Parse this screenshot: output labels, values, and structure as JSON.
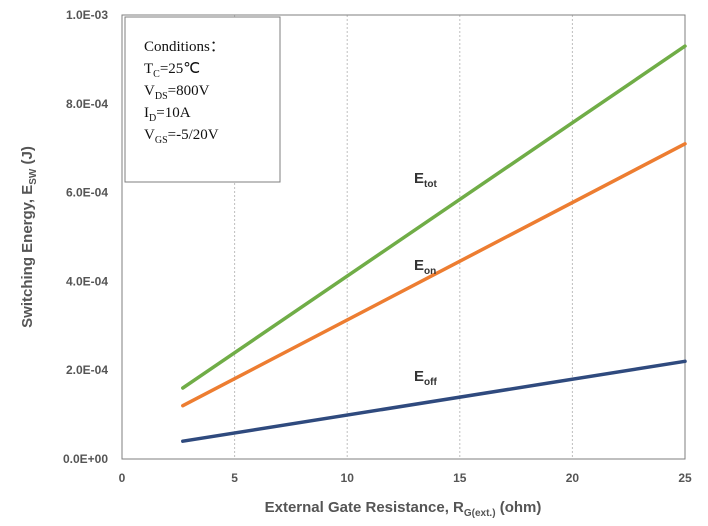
{
  "chart_data": {
    "type": "line",
    "xlabel": "External Gate Resistance, R",
    "xlabel_sub": "G(ext.)",
    "xlabel_tail": " (ohm)",
    "ylabel": "Switching Energy, E",
    "ylabel_sub": "SW",
    "ylabel_tail": " (J)",
    "xlim": [
      0,
      25
    ],
    "ylim": [
      0,
      0.001
    ],
    "x_ticks": [
      0,
      5,
      10,
      15,
      20,
      25
    ],
    "x_tick_labels": [
      "0",
      "5",
      "10",
      "15",
      "20",
      "25"
    ],
    "y_ticks": [
      0,
      0.0002,
      0.0004,
      0.0006,
      0.0008,
      0.001
    ],
    "y_tick_labels": [
      "0.0E+00",
      "2.0E-04",
      "4.0E-04",
      "6.0E-04",
      "8.0E-04",
      "1.0E-03"
    ],
    "grid": "vertical dashed",
    "series": [
      {
        "name": "E",
        "name_sub": "tot",
        "color": "#70ad47",
        "x": [
          2.7,
          25
        ],
        "y": [
          0.00016,
          0.00093
        ]
      },
      {
        "name": "E",
        "name_sub": "on",
        "color": "#ed7d31",
        "x": [
          2.7,
          25
        ],
        "y": [
          0.00012,
          0.00071
        ]
      },
      {
        "name": "E",
        "name_sub": "off",
        "color": "#2f4a7e",
        "x": [
          2.7,
          25
        ],
        "y": [
          4e-05,
          0.00022
        ]
      }
    ],
    "conditions": {
      "title": "Conditions：",
      "lines": [
        {
          "main": "T",
          "sub": "C",
          "rest": "=25℃"
        },
        {
          "main": "V",
          "sub": "DS",
          "rest": "=800V"
        },
        {
          "main": "I",
          "sub": "D",
          "rest": "=10A"
        },
        {
          "main": "V",
          "sub": "GS",
          "rest": "=-5/20V"
        }
      ]
    }
  }
}
